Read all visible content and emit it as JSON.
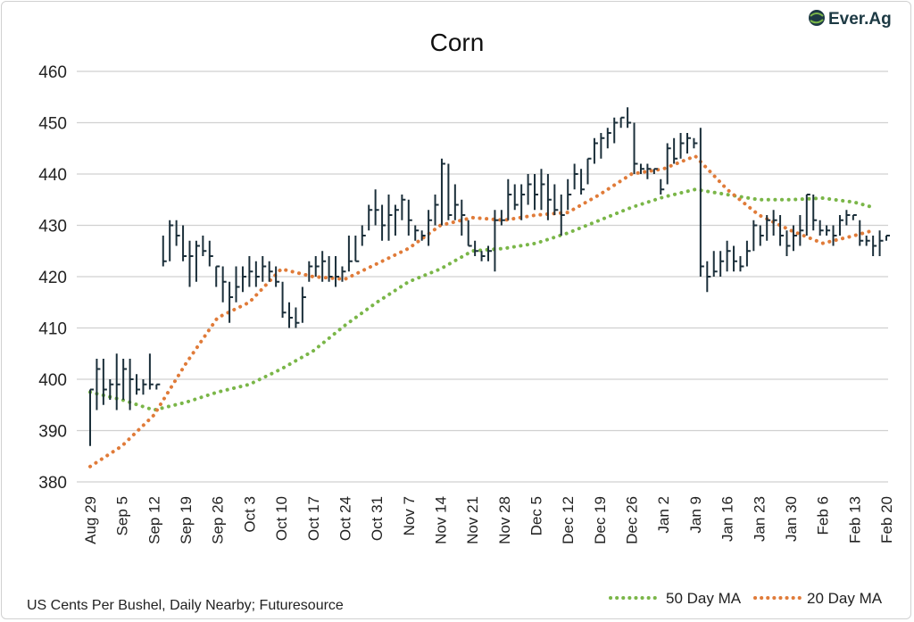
{
  "chart_data": {
    "type": "ohlc-bar-with-moving-averages",
    "title": "Corn",
    "footnote": "US Cents Per Bushel, Daily Nearby; Futuresource",
    "logo": "Ever.Ag",
    "ylim": [
      380,
      460
    ],
    "yticks": [
      380,
      390,
      400,
      410,
      420,
      430,
      440,
      450,
      460
    ],
    "grid": "horizontal",
    "legend_position": "bottom-right",
    "x_tick_labels": [
      "Aug 29",
      "Sep 5",
      "Sep 12",
      "Sep 19",
      "Sep 26",
      "Oct 3",
      "Oct 10",
      "Oct 17",
      "Oct 24",
      "Oct 31",
      "Nov 7",
      "Nov 14",
      "Nov 21",
      "Nov 28",
      "Dec 5",
      "Dec 12",
      "Dec 19",
      "Dec 26",
      "Jan 2",
      "Jan 9",
      "Jan 16",
      "Jan 23",
      "Jan 30",
      "Feb 6",
      "Feb 13",
      "Feb 20"
    ],
    "colors": {
      "bars": "#1b2f3a",
      "ma50": "#7ab648",
      "ma20": "#e07b39",
      "grid": "#d0d0d0"
    },
    "price_bars_hlc": [
      [
        398,
        387,
        398
      ],
      [
        404,
        394,
        402
      ],
      [
        404,
        395,
        398
      ],
      [
        400,
        396,
        399
      ],
      [
        405,
        394,
        399
      ],
      [
        404,
        396,
        402
      ],
      [
        404,
        394,
        400
      ],
      [
        401,
        397,
        398
      ],
      [
        400,
        397,
        399
      ],
      [
        405,
        398,
        399
      ],
      [
        399,
        398,
        399
      ],
      [
        428,
        422,
        423
      ],
      [
        431,
        423,
        430
      ],
      [
        431,
        426,
        428
      ],
      [
        430,
        423,
        424
      ],
      [
        427,
        418,
        424
      ],
      [
        427,
        419,
        426
      ],
      [
        428,
        424,
        425
      ],
      [
        427,
        422,
        424
      ],
      [
        422,
        418,
        422
      ],
      [
        422,
        415,
        419
      ],
      [
        419,
        411,
        416
      ],
      [
        422,
        415,
        418
      ],
      [
        422,
        417,
        420
      ],
      [
        424,
        418,
        421
      ],
      [
        423,
        418,
        420
      ],
      [
        424,
        419,
        422
      ],
      [
        423,
        419,
        421
      ],
      [
        422,
        418,
        419
      ],
      [
        419,
        412,
        413
      ],
      [
        415,
        410,
        412
      ],
      [
        414,
        410,
        411
      ],
      [
        418,
        411,
        416
      ],
      [
        423,
        419,
        422
      ],
      [
        424,
        420,
        422
      ],
      [
        425,
        419,
        423
      ],
      [
        424,
        419,
        420
      ],
      [
        424,
        418,
        420
      ],
      [
        422,
        419,
        421
      ],
      [
        428,
        421,
        423
      ],
      [
        428,
        423,
        423
      ],
      [
        430,
        426,
        428
      ],
      [
        434,
        429,
        433
      ],
      [
        437,
        430,
        433
      ],
      [
        434,
        427,
        430
      ],
      [
        436,
        427,
        432
      ],
      [
        434,
        428,
        433
      ],
      [
        436,
        431,
        435
      ],
      [
        435,
        428,
        431
      ],
      [
        430,
        427,
        429
      ],
      [
        429,
        427,
        428
      ],
      [
        433,
        426,
        431
      ],
      [
        436,
        430,
        434
      ],
      [
        443,
        430,
        442
      ],
      [
        442,
        431,
        432
      ],
      [
        438,
        431,
        434
      ],
      [
        435,
        428,
        432
      ],
      [
        431,
        426,
        426
      ],
      [
        427,
        424,
        425
      ],
      [
        425,
        423,
        424
      ],
      [
        426,
        423,
        425
      ],
      [
        433,
        421,
        431
      ],
      [
        433,
        430,
        431
      ],
      [
        439,
        431,
        436
      ],
      [
        438,
        433,
        434
      ],
      [
        438,
        431,
        436
      ],
      [
        440,
        434,
        438
      ],
      [
        440,
        433,
        436
      ],
      [
        441,
        433,
        438
      ],
      [
        440,
        431,
        435
      ],
      [
        438,
        432,
        433
      ],
      [
        436,
        428,
        432
      ],
      [
        439,
        433,
        436
      ],
      [
        442,
        437,
        440
      ],
      [
        441,
        436,
        437
      ],
      [
        443,
        438,
        443
      ],
      [
        447,
        442,
        446
      ],
      [
        448,
        443,
        447
      ],
      [
        449,
        445,
        448
      ],
      [
        451,
        446,
        450
      ],
      [
        451,
        449,
        451
      ],
      [
        453,
        449,
        450
      ],
      [
        450,
        440,
        442
      ],
      [
        442,
        440,
        441
      ],
      [
        442,
        439,
        441
      ],
      [
        441,
        440,
        441
      ],
      [
        439,
        436,
        437
      ],
      [
        446,
        438,
        445
      ],
      [
        447,
        442,
        443
      ],
      [
        448,
        443,
        446
      ],
      [
        448,
        444,
        447
      ],
      [
        447,
        445,
        446
      ],
      [
        449,
        420,
        422
      ],
      [
        423,
        417,
        420
      ],
      [
        425,
        420,
        421
      ],
      [
        425,
        420,
        423
      ],
      [
        427,
        421,
        425
      ],
      [
        426,
        421,
        423
      ],
      [
        424,
        421,
        422
      ],
      [
        427,
        422,
        425
      ],
      [
        431,
        425,
        430
      ],
      [
        430,
        426,
        428
      ],
      [
        432,
        427,
        431
      ],
      [
        433,
        428,
        431
      ],
      [
        432,
        426,
        428
      ],
      [
        429,
        424,
        426
      ],
      [
        430,
        425,
        428
      ],
      [
        432,
        426,
        429
      ],
      [
        436,
        428,
        436
      ],
      [
        436,
        429,
        431
      ],
      [
        431,
        428,
        429
      ],
      [
        430,
        428,
        429
      ],
      [
        430,
        426,
        428
      ],
      [
        432,
        428,
        431
      ],
      [
        433,
        430,
        432
      ],
      [
        432,
        431,
        432
      ],
      [
        431,
        426,
        427
      ],
      [
        428,
        426,
        427
      ],
      [
        428,
        424,
        426
      ],
      [
        429,
        424,
        427
      ],
      [
        428,
        427,
        428
      ]
    ],
    "series": [
      {
        "name": "50 Day MA",
        "values": [
          397.5,
          396,
          394,
          395.5,
          397.5,
          399,
          402,
          405.5,
          410.5,
          415,
          419,
          421.5,
          425,
          425.5,
          426.5,
          428.5,
          431,
          433.5,
          435.5,
          437,
          436,
          435,
          435,
          435.3,
          434.5,
          433.5
        ]
      },
      {
        "name": "20 Day MA",
        "values": [
          383,
          387,
          393,
          403,
          412,
          415,
          421.5,
          420,
          419.5,
          422.5,
          425.5,
          430,
          431.5,
          431,
          432,
          432.5,
          436,
          440,
          441,
          443.5,
          437,
          432,
          429,
          426.5,
          428,
          429
        ]
      }
    ]
  }
}
